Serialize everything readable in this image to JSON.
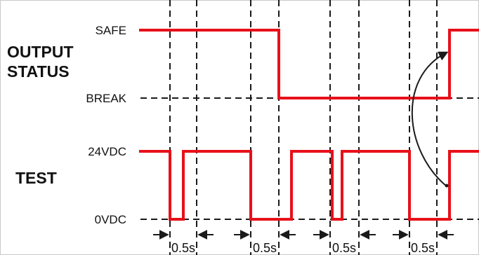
{
  "output_status": {
    "label_line1": "OUTPUT",
    "label_line2": "STATUS",
    "high_label": "SAFE",
    "low_label": "BREAK"
  },
  "test": {
    "label": "TEST",
    "high_label": "24VDC",
    "low_label": "0VDC"
  },
  "intervals": [
    {
      "label": "0.5s"
    },
    {
      "label": "0.5s"
    },
    {
      "label": "0.5s"
    },
    {
      "label": "0.5s"
    }
  ],
  "colors": {
    "signal": "#e8101a",
    "guide": "#1a1a1a",
    "text": "#111111"
  }
}
